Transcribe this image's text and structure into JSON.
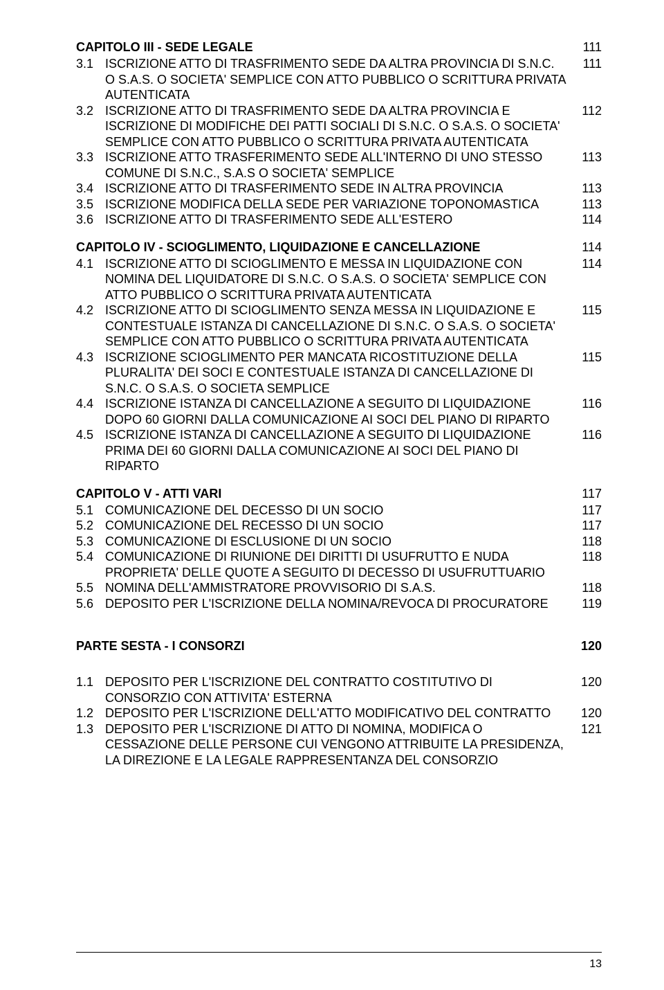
{
  "chapter3": {
    "heading": "CAPITOLO III - SEDE LEGALE",
    "page": "111",
    "entries": [
      {
        "num": "3.1",
        "text": "ISCRIZIONE ATTO DI TRASFRIMENTO SEDE DA ALTRA PROVINCIA DI S.N.C. O S.A.S. O SOCIETA' SEMPLICE CON ATTO PUBBLICO O SCRITTURA PRIVATA AUTENTICATA",
        "page": "111"
      },
      {
        "num": "3.2",
        "text": "ISCRIZIONE ATTO DI TRASFRIMENTO SEDE DA ALTRA PROVINCIA E ISCRIZIONE DI MODIFICHE DEI PATTI SOCIALI DI S.N.C. O S.A.S. O SOCIETA' SEMPLICE CON ATTO PUBBLICO O SCRITTURA PRIVATA AUTENTICATA",
        "page": "112"
      },
      {
        "num": "3.3",
        "text": "ISCRIZIONE ATTO TRASFERIMENTO SEDE ALL'INTERNO DI UNO STESSO COMUNE DI S.N.C., S.A.S O SOCIETA' SEMPLICE",
        "page": "113"
      },
      {
        "num": "3.4",
        "text": "ISCRIZIONE ATTO DI TRASFERIMENTO SEDE IN ALTRA PROVINCIA",
        "page": "113"
      },
      {
        "num": "3.5",
        "text": "ISCRIZIONE MODIFICA DELLA SEDE PER VARIAZIONE TOPONOMASTICA",
        "page": "113"
      },
      {
        "num": "3.6",
        "text": "ISCRIZIONE ATTO DI TRASFERIMENTO SEDE ALL'ESTERO",
        "page": "114"
      }
    ]
  },
  "chapter4": {
    "heading": "CAPITOLO IV - SCIOGLIMENTO, LIQUIDAZIONE E CANCELLAZIONE",
    "page": "114",
    "entries": [
      {
        "num": "4.1",
        "text": "ISCRIZIONE ATTO DI SCIOGLIMENTO E MESSA IN LIQUIDAZIONE CON NOMINA DEL LIQUIDATORE DI S.N.C. O S.A.S. O SOCIETA' SEMPLICE CON ATTO PUBBLICO O SCRITTURA PRIVATA AUTENTICATA",
        "page": "114"
      },
      {
        "num": "4.2",
        "text": "ISCRIZIONE ATTO DI SCIOGLIMENTO SENZA MESSA IN LIQUIDAZIONE E CONTESTUALE ISTANZA DI CANCELLAZIONE DI S.N.C. O S.A.S. O SOCIETA' SEMPLICE CON ATTO PUBBLICO O SCRITTURA PRIVATA AUTENTICATA",
        "page": "115"
      },
      {
        "num": "4.3",
        "text": "ISCRIZIONE SCIOGLIMENTO PER MANCATA RICOSTITUZIONE DELLA PLURALITA' DEI SOCI E CONTESTUALE ISTANZA DI CANCELLAZIONE DI S.N.C. O S.A.S. O SOCIETA SEMPLICE",
        "page": "115"
      },
      {
        "num": "4.4",
        "text": "ISCRIZIONE ISTANZA DI CANCELLAZIONE A SEGUITO DI LIQUIDAZIONE DOPO 60 GIORNI DALLA COMUNICAZIONE AI SOCI DEL PIANO DI RIPARTO",
        "page": "116"
      },
      {
        "num": "4.5",
        "text": "ISCRIZIONE ISTANZA DI CANCELLAZIONE A SEGUITO DI LIQUIDAZIONE PRIMA DEI 60 GIORNI DALLA COMUNICAZIONE AI SOCI DEL PIANO DI RIPARTO",
        "page": "116"
      }
    ]
  },
  "chapter5": {
    "heading": "CAPITOLO V - ATTI VARI",
    "page": "117",
    "entries": [
      {
        "num": "5.1",
        "text": "COMUNICAZIONE DEL DECESSO DI UN SOCIO",
        "page": "117"
      },
      {
        "num": "5.2",
        "text": "COMUNICAZIONE DEL RECESSO DI UN SOCIO",
        "page": "117"
      },
      {
        "num": "5.3",
        "text": "COMUNICAZIONE DI ESCLUSIONE DI UN SOCIO",
        "page": "118"
      },
      {
        "num": "5.4",
        "text": "COMUNICAZIONE DI RIUNIONE DEI DIRITTI DI USUFRUTTO E NUDA PROPRIETA' DELLE QUOTE A SEGUITO DI DECESSO DI USUFRUTTUARIO",
        "page": "118"
      },
      {
        "num": "5.5",
        "text": "NOMINA DELL'AMMISTRATORE PROVVISORIO DI S.A.S.",
        "page": "118"
      },
      {
        "num": "5.6",
        "text": "DEPOSITO PER L'ISCRIZIONE DELLA NOMINA/REVOCA DI PROCURATORE",
        "page": "119"
      }
    ]
  },
  "part6": {
    "heading": "PARTE SESTA - I CONSORZI",
    "page": "120",
    "entries": [
      {
        "num": "1.1",
        "text": "DEPOSITO PER L'ISCRIZIONE DEL CONTRATTO COSTITUTIVO DI CONSORZIO CON ATTIVITA' ESTERNA",
        "page": "120"
      },
      {
        "num": "1.2",
        "text": "DEPOSITO PER L'ISCRIZIONE DELL'ATTO MODIFICATIVO DEL CONTRATTO",
        "page": "120"
      },
      {
        "num": "1.3",
        "text": "DEPOSITO PER L'ISCRIZIONE DI ATTO DI NOMINA, MODIFICA O CESSAZIONE DELLE PERSONE CUI VENGONO ATTRIBUITE LA PRESIDENZA, LA DIREZIONE E LA LEGALE RAPPRESENTANZA DEL CONSORZIO",
        "page": "121"
      }
    ]
  },
  "pageNumber": "13"
}
